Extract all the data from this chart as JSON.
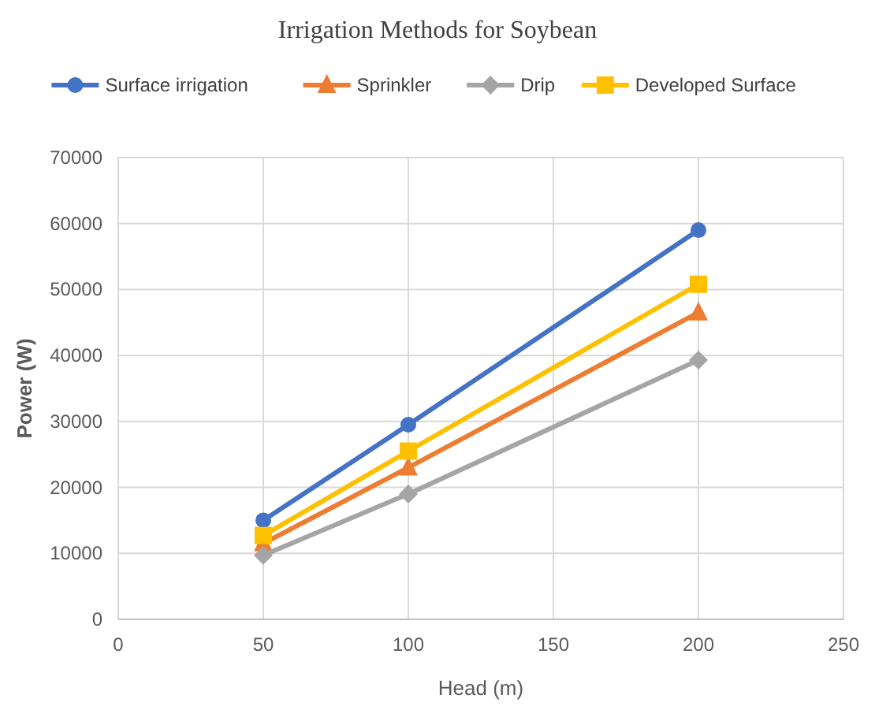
{
  "chart_data": {
    "type": "line",
    "title": "Irrigation Methods for Soybean",
    "xlabel": "Head (m)",
    "ylabel": "Power (W)",
    "x": [
      50,
      100,
      200
    ],
    "series": [
      {
        "name": "Surface irrigation",
        "color": "#4472c4",
        "marker": "circle",
        "values": [
          15000,
          29500,
          59000
        ]
      },
      {
        "name": "Sprinkler",
        "color": "#ed7d31",
        "marker": "triangle",
        "values": [
          11500,
          23000,
          46500
        ]
      },
      {
        "name": "Drip",
        "color": "#a5a5a5",
        "marker": "diamond",
        "values": [
          9700,
          19000,
          39300
        ]
      },
      {
        "name": "Developed Surface",
        "color": "#ffc000",
        "marker": "square",
        "values": [
          12700,
          25500,
          50800
        ]
      }
    ],
    "xlim": [
      0,
      250
    ],
    "xticks": [
      0,
      50,
      100,
      150,
      200,
      250
    ],
    "ylim": [
      0,
      70000
    ],
    "yticks": [
      0,
      10000,
      20000,
      30000,
      40000,
      50000,
      60000,
      70000
    ],
    "grid": true,
    "legend": "top"
  }
}
